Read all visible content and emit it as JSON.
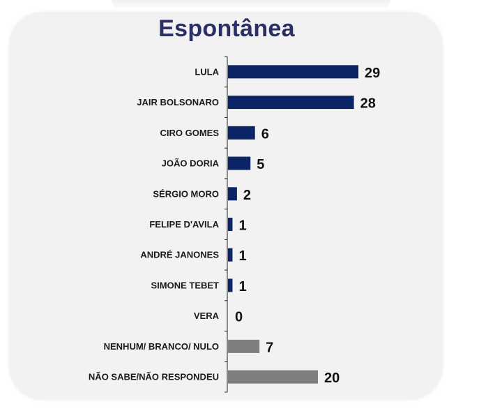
{
  "chart_data": {
    "type": "bar",
    "orientation": "horizontal",
    "title": "Espontânea",
    "categories": [
      "LULA",
      "JAIR BOLSONARO",
      "CIRO GOMES",
      "JOÃO DORIA",
      "SÉRGIO MORO",
      "FELIPE D'AVILA",
      "ANDRÉ JANONES",
      "SIMONE TEBET",
      "VERA",
      "NENHUM/ BRANCO/ NULO",
      "NÃO SABE/NÃO RESPONDEU"
    ],
    "values": [
      29,
      28,
      6,
      5,
      2,
      1,
      1,
      1,
      0,
      7,
      20
    ],
    "bar_colors": [
      "#0b2466",
      "#0b2466",
      "#0b2466",
      "#0b2466",
      "#0b2466",
      "#0b2466",
      "#0b2466",
      "#0b2466",
      "#0b2466",
      "#7f7f7f",
      "#7f7f7f"
    ],
    "xlim": [
      0,
      30
    ],
    "grid": false,
    "legend": "none"
  },
  "colors": {
    "title": "#2a2f66",
    "panel": "#f2f2f3",
    "primary_bar": "#0b2466",
    "other_bar": "#7f7f7f"
  }
}
